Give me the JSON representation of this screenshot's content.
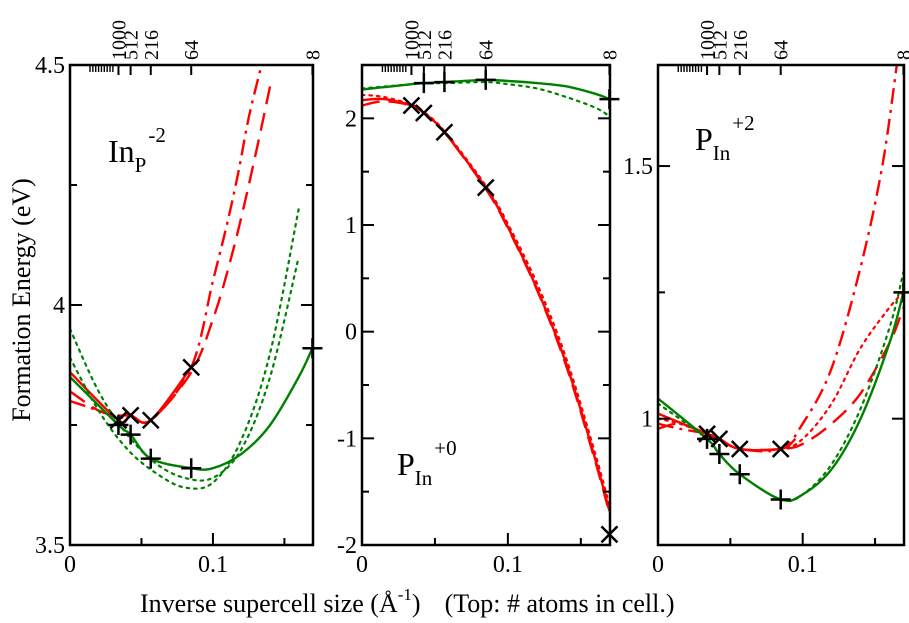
{
  "ylabel": "Formation Energy (eV)",
  "xlabel_parts": {
    "main": "Inverse supercell size (Å",
    "exp": "-1",
    "close": ")",
    "note": "(Top: # atoms in cell.)"
  },
  "colors": {
    "red": "#ff0000",
    "green": "#008000",
    "axis": "#000000",
    "marker": "#000000"
  },
  "chart_data": [
    {
      "type": "line",
      "panel": "left",
      "label": {
        "base": "In",
        "sub": "P",
        "sup": "-2"
      },
      "xlim": [
        0,
        0.17
      ],
      "ylim": [
        3.5,
        4.5
      ],
      "x_ticks": [
        {
          "v": 0,
          "t": "0"
        },
        {
          "v": 0.1,
          "t": "0.1"
        }
      ],
      "y_ticks": [
        {
          "v": 3.5,
          "t": "3.5"
        },
        {
          "v": 4.0,
          "t": "4"
        },
        {
          "v": 4.5,
          "t": "4.5"
        }
      ],
      "top_ticks": [
        {
          "n": "1000",
          "x": 0.0339
        },
        {
          "n": "512",
          "x": 0.0424
        },
        {
          "n": "216",
          "x": 0.0565
        },
        {
          "n": "64",
          "x": 0.0848
        },
        {
          "n": "8",
          "x": 0.1696
        }
      ],
      "series": [
        {
          "color": "red",
          "dash": "",
          "x": [
            0,
            0.0339,
            0.0424,
            0.0565,
            0.0848
          ],
          "y": [
            3.86,
            3.76,
            3.77,
            3.76,
            3.87
          ],
          "extend_to": 0.1
        },
        {
          "color": "red",
          "dash": "dashdot",
          "x": [
            0,
            0.02,
            0.0339,
            0.0424,
            0.0565,
            0.0848,
            0.1,
            0.11,
            0.118,
            0.125,
            0.134
          ],
          "y": [
            3.8,
            3.78,
            3.765,
            3.77,
            3.76,
            3.87,
            4.05,
            4.17,
            4.28,
            4.39,
            4.5
          ]
        },
        {
          "color": "red",
          "dash": "dashed",
          "x": [
            0,
            0.02,
            0.0339,
            0.0424,
            0.0565,
            0.0848,
            0.1,
            0.112,
            0.122,
            0.131,
            0.141
          ],
          "y": [
            3.82,
            3.78,
            3.77,
            3.77,
            3.76,
            3.86,
            3.97,
            4.09,
            4.21,
            4.33,
            4.47
          ]
        },
        {
          "color": "green",
          "dash": "",
          "x": [
            0,
            0.0339,
            0.0424,
            0.0565,
            0.0848,
            0.1,
            0.12,
            0.14,
            0.16,
            0.1696
          ],
          "y": [
            3.85,
            3.75,
            3.73,
            3.68,
            3.66,
            3.66,
            3.69,
            3.75,
            3.85,
            3.91
          ]
        },
        {
          "color": "green",
          "dash": "dotted",
          "x": [
            0,
            0.02,
            0.04,
            0.06,
            0.08,
            0.1,
            0.12,
            0.14,
            0.16
          ],
          "y": [
            3.95,
            3.82,
            3.73,
            3.67,
            3.64,
            3.64,
            3.7,
            3.85,
            4.1
          ]
        },
        {
          "color": "green",
          "dash": "dotted",
          "x": [
            0,
            0.02,
            0.04,
            0.06,
            0.08,
            0.1,
            0.12,
            0.14,
            0.16
          ],
          "y": [
            3.89,
            3.78,
            3.7,
            3.65,
            3.62,
            3.63,
            3.72,
            3.9,
            4.2
          ]
        }
      ],
      "markers_x": {
        "x": [
          0.0339,
          0.0424,
          0.0565,
          0.0848
        ],
        "y": [
          3.76,
          3.77,
          3.76,
          3.87
        ]
      },
      "markers_plus": {
        "x": [
          0.0339,
          0.0424,
          0.0565,
          0.0848,
          0.1696
        ],
        "y": [
          3.75,
          3.73,
          3.68,
          3.66,
          3.91
        ]
      }
    },
    {
      "type": "line",
      "panel": "middle",
      "label": {
        "base": "P",
        "sub": "In",
        "sup": "+0"
      },
      "xlim": [
        0,
        0.17
      ],
      "ylim": [
        -2,
        2.5
      ],
      "x_ticks": [
        {
          "v": 0,
          "t": "0"
        },
        {
          "v": 0.1,
          "t": "0.1"
        }
      ],
      "y_ticks": [
        {
          "v": -2,
          "t": "-2"
        },
        {
          "v": -1,
          "t": "-1"
        },
        {
          "v": 0,
          "t": "0"
        },
        {
          "v": 1,
          "t": "1"
        },
        {
          "v": 2,
          "t": "2"
        }
      ],
      "top_ticks": [
        {
          "n": "1000",
          "x": 0.0339
        },
        {
          "n": "512",
          "x": 0.0424
        },
        {
          "n": "216",
          "x": 0.0565
        },
        {
          "n": "64",
          "x": 0.0848
        },
        {
          "n": "8",
          "x": 0.1696
        }
      ],
      "series": [
        {
          "color": "red",
          "dash": "",
          "x": [
            0,
            0.015,
            0.0339,
            0.0424,
            0.0565,
            0.0848,
            0.1,
            0.12,
            0.14,
            0.16,
            0.1696
          ],
          "y": [
            2.17,
            2.18,
            2.12,
            2.05,
            1.87,
            1.35,
            0.98,
            0.4,
            -0.3,
            -1.2,
            -1.68
          ]
        },
        {
          "color": "red",
          "dash": "dotted",
          "x": [
            0,
            0.015,
            0.0339,
            0.0424,
            0.0565,
            0.0848,
            0.1,
            0.12,
            0.14,
            0.16,
            0.1696
          ],
          "y": [
            2.22,
            2.2,
            2.13,
            2.06,
            1.88,
            1.37,
            1.01,
            0.45,
            -0.25,
            -1.15,
            -1.63
          ]
        },
        {
          "color": "red",
          "dash": "dashed",
          "x": [
            0,
            0.015,
            0.0339,
            0.0424,
            0.0565,
            0.0848,
            0.1,
            0.12,
            0.14,
            0.16,
            0.1696
          ],
          "y": [
            2.12,
            2.16,
            2.12,
            2.05,
            1.87,
            1.34,
            0.97,
            0.39,
            -0.32,
            -1.22,
            -1.7
          ]
        },
        {
          "color": "green",
          "dash": "",
          "x": [
            0,
            0.0339,
            0.0424,
            0.0565,
            0.0848,
            0.1,
            0.12,
            0.14,
            0.16,
            0.1696
          ],
          "y": [
            2.27,
            2.32,
            2.33,
            2.34,
            2.36,
            2.35,
            2.33,
            2.3,
            2.23,
            2.18
          ]
        },
        {
          "color": "green",
          "dash": "dotted",
          "x": [
            0,
            0.0339,
            0.0424,
            0.0565,
            0.0848,
            0.1,
            0.12,
            0.14,
            0.16,
            0.1696
          ],
          "y": [
            2.28,
            2.32,
            2.33,
            2.33,
            2.34,
            2.32,
            2.28,
            2.2,
            2.1,
            2.02
          ]
        }
      ],
      "markers_x": {
        "x": [
          0.0339,
          0.0424,
          0.0565,
          0.0848,
          0.1696
        ],
        "y": [
          2.12,
          2.05,
          1.87,
          1.35,
          -1.9
        ]
      },
      "markers_plus": {
        "x": [
          0.0424,
          0.0565,
          0.0848,
          0.1696
        ],
        "y": [
          2.33,
          2.34,
          2.36,
          2.18
        ]
      }
    },
    {
      "type": "line",
      "panel": "right",
      "label": {
        "base": "P",
        "sub": "In",
        "sup": "+2"
      },
      "xlim": [
        0,
        0.17
      ],
      "ylim": [
        0.75,
        1.7
      ],
      "x_ticks": [
        {
          "v": 0,
          "t": "0"
        },
        {
          "v": 0.1,
          "t": "0.1"
        }
      ],
      "y_ticks": [
        {
          "v": 1.0,
          "t": "1"
        },
        {
          "v": 1.5,
          "t": "1.5"
        }
      ],
      "top_ticks": [
        {
          "n": "1000",
          "x": 0.0339
        },
        {
          "n": "512",
          "x": 0.0424
        },
        {
          "n": "216",
          "x": 0.0565
        },
        {
          "n": "64",
          "x": 0.0848
        },
        {
          "n": "8",
          "x": 0.1696
        }
      ],
      "series": [
        {
          "color": "red",
          "dash": "",
          "x": [
            0,
            0.0339,
            0.0424,
            0.0565,
            0.0848,
            0.095
          ],
          "y": [
            1.01,
            0.97,
            0.96,
            0.94,
            0.94,
            0.96
          ]
        },
        {
          "color": "red",
          "dash": "dashdot",
          "x": [
            0,
            0.015,
            0.0339,
            0.0424,
            0.0565,
            0.0848,
            0.1,
            0.12,
            0.14,
            0.155,
            0.165
          ],
          "y": [
            0.99,
            0.98,
            0.97,
            0.96,
            0.94,
            0.94,
            0.99,
            1.1,
            1.3,
            1.5,
            1.7
          ]
        },
        {
          "color": "red",
          "dash": "dotted",
          "x": [
            0,
            0.015,
            0.0339,
            0.0424,
            0.0565,
            0.0848,
            0.1,
            0.12,
            0.14,
            0.16,
            0.1696
          ],
          "y": [
            1.0,
            0.99,
            0.97,
            0.96,
            0.94,
            0.94,
            0.96,
            1.03,
            1.14,
            1.22,
            1.25
          ]
        },
        {
          "color": "red",
          "dash": "dashed",
          "x": [
            0,
            0.015,
            0.0339,
            0.0424,
            0.0565,
            0.0848,
            0.1,
            0.12,
            0.14,
            0.16,
            0.1696
          ],
          "y": [
            0.98,
            0.99,
            0.97,
            0.96,
            0.94,
            0.94,
            0.95,
            0.99,
            1.05,
            1.15,
            1.22
          ]
        },
        {
          "color": "green",
          "dash": "",
          "x": [
            0,
            0.0339,
            0.0424,
            0.0565,
            0.0848,
            0.1,
            0.12,
            0.14,
            0.16,
            0.1696
          ],
          "y": [
            1.04,
            0.96,
            0.93,
            0.89,
            0.84,
            0.85,
            0.9,
            1.0,
            1.15,
            1.25
          ]
        },
        {
          "color": "green",
          "dash": "dotted",
          "x": [
            0,
            0.0339,
            0.0424,
            0.0565,
            0.0848,
            0.1,
            0.12,
            0.14,
            0.16,
            0.1696
          ],
          "y": [
            1.03,
            0.96,
            0.93,
            0.89,
            0.84,
            0.85,
            0.91,
            1.02,
            1.18,
            1.29
          ]
        }
      ],
      "markers_x": {
        "x": [
          0.0339,
          0.0424,
          0.0565,
          0.0848
        ],
        "y": [
          0.97,
          0.96,
          0.94,
          0.94
        ]
      },
      "markers_plus": {
        "x": [
          0.0339,
          0.0424,
          0.0565,
          0.0848,
          0.1696
        ],
        "y": [
          0.96,
          0.93,
          0.89,
          0.84,
          1.25
        ]
      }
    }
  ]
}
